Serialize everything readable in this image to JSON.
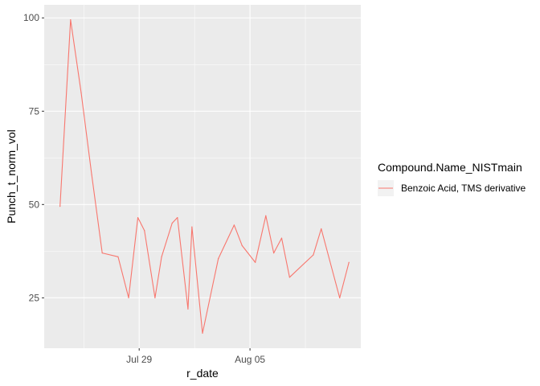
{
  "chart_data": {
    "type": "line",
    "xlabel": "r_date",
    "ylabel": "Punch_t_norm_vol",
    "x_ticks": [
      {
        "date": "2024-07-29",
        "label": "Jul 29"
      },
      {
        "date": "2024-08-05",
        "label": "Aug 05"
      }
    ],
    "y_ticks": [
      25,
      50,
      75,
      100
    ],
    "xlim": [
      "2024-07-23",
      "2024-08-12"
    ],
    "ylim": [
      11.5,
      103.5
    ],
    "grid": true,
    "legend": {
      "title": "Compound.Name_NISTmain",
      "position": "right"
    },
    "series": [
      {
        "name": "Benzoic Acid, TMS derivative",
        "color": "#F8766D",
        "points": [
          {
            "x": "2024-07-24",
            "y": 49.5
          },
          {
            "x": "2024-07-24 16:00",
            "y": 99.5
          },
          {
            "x": "2024-07-25 08:00",
            "y": 80
          },
          {
            "x": "2024-07-26",
            "y": 58
          },
          {
            "x": "2024-07-26 16:00",
            "y": 37
          },
          {
            "x": "2024-07-27 16:00",
            "y": 36
          },
          {
            "x": "2024-07-28 08:00",
            "y": 25
          },
          {
            "x": "2024-07-28 22:00",
            "y": 46.5
          },
          {
            "x": "2024-07-29 08:00",
            "y": 43
          },
          {
            "x": "2024-07-30",
            "y": 25
          },
          {
            "x": "2024-07-30 10:00",
            "y": 36
          },
          {
            "x": "2024-07-31 02:00",
            "y": 45
          },
          {
            "x": "2024-07-31 10:00",
            "y": 46.5
          },
          {
            "x": "2024-08-01 02:00",
            "y": 22
          },
          {
            "x": "2024-08-01 08:00",
            "y": 44
          },
          {
            "x": "2024-08-02",
            "y": 15.5
          },
          {
            "x": "2024-08-03",
            "y": 35.5
          },
          {
            "x": "2024-08-04",
            "y": 44.5
          },
          {
            "x": "2024-08-04 12:00",
            "y": 39
          },
          {
            "x": "2024-08-05 08:00",
            "y": 34.5
          },
          {
            "x": "2024-08-06",
            "y": 47
          },
          {
            "x": "2024-08-06 12:00",
            "y": 37
          },
          {
            "x": "2024-08-07",
            "y": 41
          },
          {
            "x": "2024-08-07 12:00",
            "y": 30.5
          },
          {
            "x": "2024-08-09",
            "y": 36.5
          },
          {
            "x": "2024-08-09 12:00",
            "y": 43.5
          },
          {
            "x": "2024-08-10 16:00",
            "y": 25
          },
          {
            "x": "2024-08-11 06:00",
            "y": 34.5
          }
        ]
      }
    ]
  }
}
